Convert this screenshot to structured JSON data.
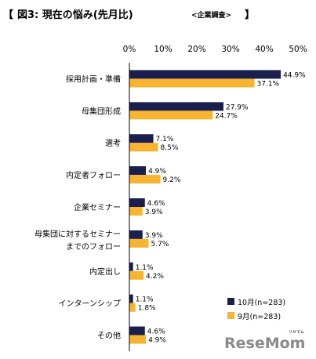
{
  "title": {
    "bracket_open": "【",
    "main": "図3:  現在の悩み(先月比)",
    "sub": "<企業調査>",
    "bracket_close": "】"
  },
  "logo": {
    "text": "ReseMom",
    "tagline": "リセマム",
    "color": "#8a8a8a"
  },
  "colors": {
    "series1": "#1a1f4e",
    "series2": "#f7b431",
    "axis": "#000000"
  },
  "chart_data": {
    "type": "bar",
    "orientation": "horizontal",
    "title": "図3: 現在の悩み(先月比) <企業調査>",
    "xlim": [
      0,
      50
    ],
    "ticks": [
      "0%",
      "10%",
      "20%",
      "30%",
      "40%",
      "50%"
    ],
    "tick_values": [
      0,
      10,
      20,
      30,
      40,
      50
    ],
    "grid": false,
    "legend_position": "bottom-right",
    "categories": [
      [
        "採用計画・準備"
      ],
      [
        "母集団形成"
      ],
      [
        "選考"
      ],
      [
        "内定者フォロー"
      ],
      [
        "企業セミナー"
      ],
      [
        "母集団に対するセミナー",
        "までのフォロー"
      ],
      [
        "内定出し"
      ],
      [
        "インターンシップ"
      ],
      [
        "その他"
      ]
    ],
    "series": [
      {
        "name": "10月(n=283)",
        "values": [
          44.9,
          27.9,
          7.1,
          4.9,
          4.6,
          3.9,
          1.1,
          1.1,
          4.6
        ],
        "labels": [
          "44.9%",
          "27.9%",
          "7.1%",
          "4.9%",
          "4.6%",
          "3.9%",
          "1.1%",
          "1.1%",
          "4.6%"
        ]
      },
      {
        "name": "9月(n=283)",
        "values": [
          37.1,
          24.7,
          8.5,
          9.2,
          3.9,
          5.7,
          4.2,
          1.8,
          4.9
        ],
        "labels": [
          "37.1%",
          "24.7%",
          "8.5%",
          "9.2%",
          "3.9%",
          "5.7%",
          "4.2%",
          "1.8%",
          "4.9%"
        ]
      }
    ]
  }
}
